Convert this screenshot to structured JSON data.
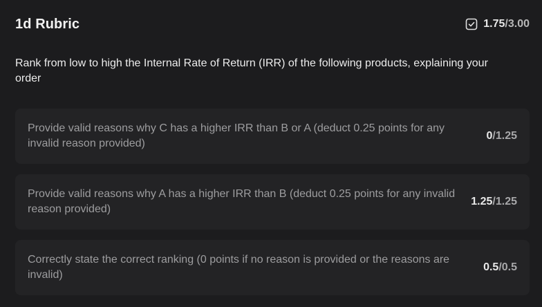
{
  "rubric": {
    "title": "1d Rubric",
    "score": "1.75",
    "separator": "/",
    "max_score": "3.00",
    "score_icon": "checkbox-check-icon"
  },
  "question": "Rank from low to high the Internal Rate of Return (IRR) of the following products, explaining your order",
  "criteria": [
    {
      "text": "Provide valid reasons why C has a higher IRR than B or A (deduct 0.25 points for any invalid reason provided)",
      "score": "0",
      "max": "/1.25"
    },
    {
      "text": "Provide valid reasons why A has a higher IRR than B (deduct 0.25 points for any invalid reason provided)",
      "score": "1.25",
      "max": "/1.25"
    },
    {
      "text": "Correctly state the correct ranking (0 points if no reason is provided or the reasons are invalid)",
      "score": "0.5",
      "max": "/0.5"
    }
  ],
  "colors": {
    "background": "#1c1c1e",
    "card": "#232325",
    "muted_text": "#9d9d9f"
  }
}
